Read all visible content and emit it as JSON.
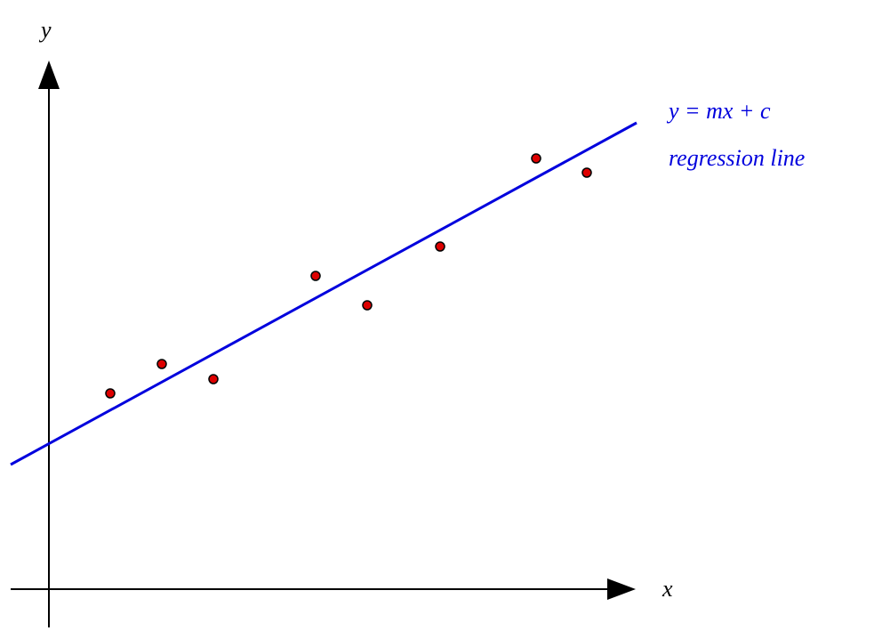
{
  "chart_data": {
    "type": "scatter",
    "x_label": "x",
    "y_label": "y",
    "annotations": [
      "y = mx + c"
    ],
    "xlim": [
      -4.3,
      66
    ],
    "ylim": [
      -4.3,
      59.4
    ],
    "series": [
      {
        "name": "regression line",
        "type": "line",
        "color": "#0000dd",
        "x": [
          -4.3,
          66.1
        ],
        "values": [
          14,
          52.4
        ]
      },
      {
        "type": "scatter",
        "color": "#dd0000",
        "x": [
          6.9,
          12.7,
          18.5,
          30,
          35.8,
          44,
          54.8,
          60.5
        ],
        "values": [
          22,
          25.3,
          23.6,
          35.2,
          31.9,
          38.5,
          48.4,
          46.8
        ]
      }
    ]
  }
}
